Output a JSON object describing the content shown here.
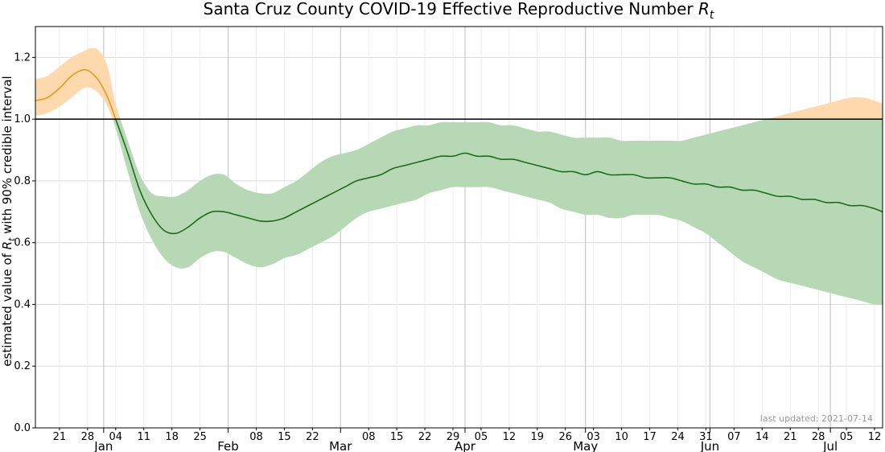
{
  "chart_data": {
    "type": "line",
    "title": "Santa Cruz County COVID-19 Effective Reproductive Number",
    "title_symbol": "R",
    "title_symbol_sub": "t",
    "ylabel_prefix": "estimated value of",
    "ylabel_symbol": "R",
    "ylabel_symbol_sub": "t",
    "ylabel_suffix": "with 90% credible interval",
    "ylim": [
      0,
      1.3
    ],
    "xlim": [
      "2020-12-15",
      "2021-07-14"
    ],
    "yticks": [
      0.0,
      0.2,
      0.4,
      0.6,
      0.8,
      1.0,
      1.2
    ],
    "ytick_labels": [
      "0.0",
      "0.2",
      "0.4",
      "0.6",
      "0.8",
      "1.0",
      "1.2"
    ],
    "reference_line": 1.0,
    "grid": true,
    "week_ticks": [
      {
        "date": "2020-12-21",
        "label": "21"
      },
      {
        "date": "2020-12-28",
        "label": "28"
      },
      {
        "date": "2021-01-04",
        "label": "04"
      },
      {
        "date": "2021-01-11",
        "label": "11"
      },
      {
        "date": "2021-01-18",
        "label": "18"
      },
      {
        "date": "2021-01-25",
        "label": "25"
      },
      {
        "date": "2021-02-08",
        "label": "08"
      },
      {
        "date": "2021-02-15",
        "label": "15"
      },
      {
        "date": "2021-02-22",
        "label": "22"
      },
      {
        "date": "2021-03-08",
        "label": "08"
      },
      {
        "date": "2021-03-15",
        "label": "15"
      },
      {
        "date": "2021-03-22",
        "label": "22"
      },
      {
        "date": "2021-03-29",
        "label": "29"
      },
      {
        "date": "2021-04-05",
        "label": "05"
      },
      {
        "date": "2021-04-12",
        "label": "12"
      },
      {
        "date": "2021-04-19",
        "label": "19"
      },
      {
        "date": "2021-04-26",
        "label": "26"
      },
      {
        "date": "2021-05-03",
        "label": "03"
      },
      {
        "date": "2021-05-10",
        "label": "10"
      },
      {
        "date": "2021-05-17",
        "label": "17"
      },
      {
        "date": "2021-05-24",
        "label": "24"
      },
      {
        "date": "2021-05-31",
        "label": "31"
      },
      {
        "date": "2021-06-07",
        "label": "07"
      },
      {
        "date": "2021-06-14",
        "label": "14"
      },
      {
        "date": "2021-06-21",
        "label": "21"
      },
      {
        "date": "2021-06-28",
        "label": "28"
      },
      {
        "date": "2021-07-05",
        "label": "05"
      },
      {
        "date": "2021-07-12",
        "label": "12"
      }
    ],
    "month_ticks": [
      {
        "date": "2021-01-01",
        "label": "Jan"
      },
      {
        "date": "2021-02-01",
        "label": "Feb"
      },
      {
        "date": "2021-03-01",
        "label": "Mar"
      },
      {
        "date": "2021-04-01",
        "label": "Apr"
      },
      {
        "date": "2021-05-01",
        "label": "May"
      },
      {
        "date": "2021-06-01",
        "label": "Jun"
      },
      {
        "date": "2021-07-01",
        "label": "Jul"
      }
    ],
    "series": [
      {
        "x": [
          "2020-12-15",
          "2020-12-18",
          "2020-12-21",
          "2020-12-24",
          "2020-12-27",
          "2020-12-29",
          "2020-12-31",
          "2021-01-02",
          "2021-01-04",
          "2021-01-07",
          "2021-01-10",
          "2021-01-13",
          "2021-01-16",
          "2021-01-19",
          "2021-01-22",
          "2021-01-25",
          "2021-01-28",
          "2021-01-31",
          "2021-02-03",
          "2021-02-06",
          "2021-02-09",
          "2021-02-12",
          "2021-02-15",
          "2021-02-18",
          "2021-02-21",
          "2021-02-24",
          "2021-02-27",
          "2021-03-02",
          "2021-03-05",
          "2021-03-08",
          "2021-03-11",
          "2021-03-14",
          "2021-03-17",
          "2021-03-20",
          "2021-03-23",
          "2021-03-26",
          "2021-03-29",
          "2021-04-01",
          "2021-04-04",
          "2021-04-07",
          "2021-04-10",
          "2021-04-13",
          "2021-04-16",
          "2021-04-19",
          "2021-04-22",
          "2021-04-25",
          "2021-04-28",
          "2021-05-01",
          "2021-05-04",
          "2021-05-07",
          "2021-05-10",
          "2021-05-13",
          "2021-05-16",
          "2021-05-19",
          "2021-05-22",
          "2021-05-25",
          "2021-05-28",
          "2021-05-31",
          "2021-06-03",
          "2021-06-06",
          "2021-06-09",
          "2021-06-12",
          "2021-06-15",
          "2021-06-18",
          "2021-06-21",
          "2021-06-24",
          "2021-06-27",
          "2021-06-30",
          "2021-07-03",
          "2021-07-06",
          "2021-07-09",
          "2021-07-12",
          "2021-07-14"
        ],
        "y": [
          1.06,
          1.07,
          1.1,
          1.14,
          1.16,
          1.15,
          1.12,
          1.07,
          1.0,
          0.89,
          0.77,
          0.69,
          0.64,
          0.63,
          0.65,
          0.68,
          0.7,
          0.7,
          0.69,
          0.68,
          0.67,
          0.67,
          0.68,
          0.7,
          0.72,
          0.74,
          0.76,
          0.78,
          0.8,
          0.81,
          0.82,
          0.84,
          0.85,
          0.86,
          0.87,
          0.88,
          0.88,
          0.89,
          0.88,
          0.88,
          0.87,
          0.87,
          0.86,
          0.85,
          0.84,
          0.83,
          0.83,
          0.82,
          0.83,
          0.82,
          0.82,
          0.82,
          0.81,
          0.81,
          0.81,
          0.8,
          0.79,
          0.79,
          0.78,
          0.78,
          0.77,
          0.77,
          0.76,
          0.75,
          0.75,
          0.74,
          0.74,
          0.73,
          0.73,
          0.72,
          0.72,
          0.71,
          0.7
        ],
        "lower": [
          1.01,
          1.02,
          1.04,
          1.07,
          1.1,
          1.1,
          1.08,
          1.04,
          0.97,
          0.83,
          0.7,
          0.61,
          0.55,
          0.52,
          0.52,
          0.55,
          0.57,
          0.57,
          0.55,
          0.53,
          0.52,
          0.53,
          0.55,
          0.56,
          0.58,
          0.6,
          0.62,
          0.65,
          0.68,
          0.7,
          0.71,
          0.72,
          0.73,
          0.74,
          0.76,
          0.77,
          0.78,
          0.78,
          0.78,
          0.78,
          0.77,
          0.76,
          0.75,
          0.74,
          0.73,
          0.71,
          0.7,
          0.69,
          0.69,
          0.68,
          0.68,
          0.69,
          0.69,
          0.69,
          0.68,
          0.67,
          0.65,
          0.63,
          0.6,
          0.57,
          0.54,
          0.52,
          0.5,
          0.48,
          0.47,
          0.46,
          0.45,
          0.44,
          0.43,
          0.42,
          0.41,
          0.4,
          0.4
        ],
        "upper": [
          1.13,
          1.14,
          1.17,
          1.2,
          1.22,
          1.23,
          1.22,
          1.17,
          1.05,
          0.93,
          0.82,
          0.76,
          0.75,
          0.75,
          0.77,
          0.8,
          0.82,
          0.82,
          0.79,
          0.77,
          0.76,
          0.76,
          0.78,
          0.8,
          0.83,
          0.86,
          0.88,
          0.89,
          0.9,
          0.92,
          0.94,
          0.96,
          0.97,
          0.98,
          0.98,
          0.99,
          0.99,
          0.99,
          0.99,
          0.99,
          0.98,
          0.98,
          0.97,
          0.96,
          0.96,
          0.95,
          0.94,
          0.94,
          0.94,
          0.94,
          0.93,
          0.93,
          0.93,
          0.93,
          0.93,
          0.93,
          0.94,
          0.95,
          0.96,
          0.97,
          0.98,
          0.99,
          1.0,
          1.01,
          1.02,
          1.03,
          1.04,
          1.05,
          1.06,
          1.07,
          1.07,
          1.06,
          1.05
        ],
        "colors": {
          "line_above": "#e69a1c",
          "band_above": "#ffd9ae",
          "line_below": "#1e6b1e",
          "band_below": "#b6d8b4",
          "ref_line": "#000000",
          "grid": "#d9d9d9"
        }
      }
    ]
  },
  "footnote": "last updated: 2021-07-14"
}
